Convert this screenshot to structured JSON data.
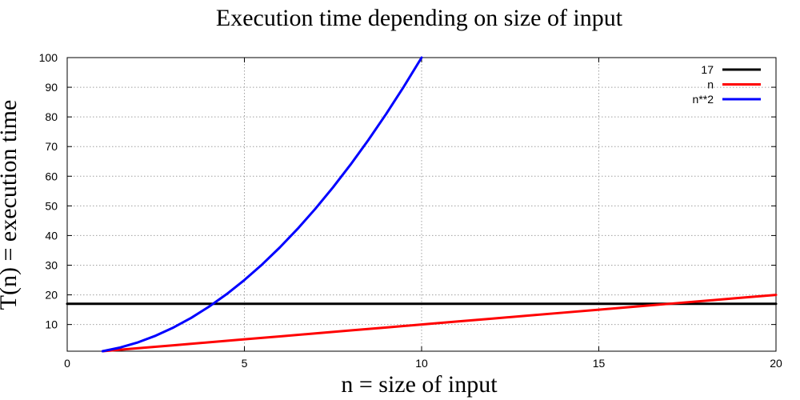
{
  "chart_data": {
    "type": "line",
    "title": "Execution time depending on size of input",
    "xlabel": "n = size of input",
    "ylabel": "T(n) = execution time",
    "xlim": [
      0,
      20
    ],
    "ylim": [
      1,
      100
    ],
    "xticks": [
      0,
      5,
      10,
      15,
      20
    ],
    "yticks": [
      10,
      20,
      30,
      40,
      50,
      60,
      70,
      80,
      90,
      100
    ],
    "grid": true,
    "legend_position": "top-right",
    "series": [
      {
        "name": "17",
        "color": "#000000",
        "points": [
          [
            0,
            17
          ],
          [
            20,
            17
          ]
        ]
      },
      {
        "name": "n",
        "color": "#ff0000",
        "points": [
          [
            1,
            1
          ],
          [
            2,
            2
          ],
          [
            3,
            3
          ],
          [
            4,
            4
          ],
          [
            5,
            5
          ],
          [
            6,
            6
          ],
          [
            7,
            7
          ],
          [
            8,
            8
          ],
          [
            9,
            9
          ],
          [
            10,
            10
          ],
          [
            11,
            11
          ],
          [
            12,
            12
          ],
          [
            13,
            13
          ],
          [
            14,
            14
          ],
          [
            15,
            15
          ],
          [
            16,
            16
          ],
          [
            17,
            17
          ],
          [
            18,
            18
          ],
          [
            19,
            19
          ],
          [
            20,
            20
          ]
        ]
      },
      {
        "name": "n**2",
        "color": "#0000ff",
        "points": [
          [
            1,
            1
          ],
          [
            1.5,
            2.25
          ],
          [
            2,
            4
          ],
          [
            2.5,
            6.25
          ],
          [
            3,
            9
          ],
          [
            3.5,
            12.25
          ],
          [
            4,
            16
          ],
          [
            4.5,
            20.25
          ],
          [
            5,
            25
          ],
          [
            5.5,
            30.25
          ],
          [
            6,
            36
          ],
          [
            6.5,
            42.25
          ],
          [
            7,
            49
          ],
          [
            7.5,
            56.25
          ],
          [
            8,
            64
          ],
          [
            8.5,
            72.25
          ],
          [
            9,
            81
          ],
          [
            9.5,
            90.25
          ],
          [
            10,
            100
          ]
        ]
      }
    ]
  }
}
